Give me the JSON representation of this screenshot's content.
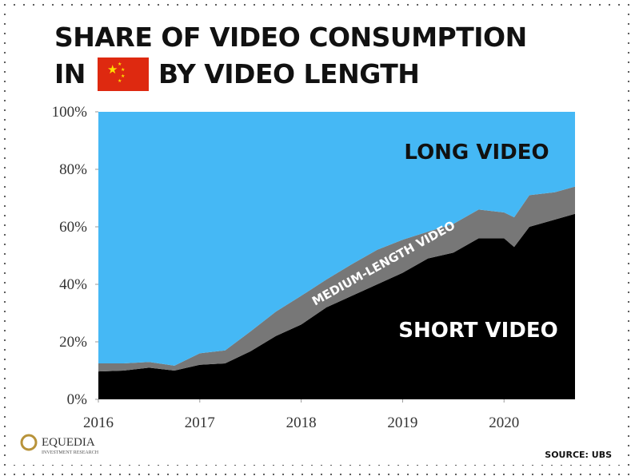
{
  "chart_data": {
    "type": "stacked-area",
    "title_line1": "SHARE OF VIDEO CONSUMPTION",
    "title_line2_start": "IN",
    "title_line2_end": "BY VIDEO LENGTH",
    "source": "SOURCE:  UBS",
    "x": [
      2016.0,
      2016.25,
      2016.5,
      2016.75,
      2017.0,
      2017.25,
      2017.5,
      2017.75,
      2018.0,
      2018.25,
      2018.5,
      2018.75,
      2019.0,
      2019.25,
      2019.5,
      2019.75,
      2020.0,
      2020.1,
      2020.25,
      2020.5,
      2020.7
    ],
    "series": [
      {
        "name": "SHORT VIDEO",
        "color": "#000000",
        "values": [
          9.7,
          10,
          11,
          10,
          12,
          12.5,
          16.7,
          22,
          26,
          32,
          36,
          40,
          44,
          49,
          51,
          56,
          56,
          53,
          60,
          62.5,
          64.5
        ]
      },
      {
        "name": "MEDIUM-LENGTH VIDEO",
        "color": "#777777",
        "values": [
          2.8,
          2.5,
          2,
          1.7,
          4,
          4.5,
          6.9,
          8.5,
          10,
          9.7,
          11,
          12,
          11.5,
          9.3,
          10,
          10,
          9,
          10.3,
          11,
          9.5,
          9.5
        ]
      },
      {
        "name": "LONG VIDEO",
        "color": "#45b8f5",
        "values": [
          87.5,
          87.5,
          87,
          88.3,
          84,
          83,
          76.4,
          69.5,
          64,
          58.3,
          53,
          48,
          44.5,
          41.7,
          39,
          34,
          35,
          36.7,
          29,
          28,
          26
        ]
      }
    ],
    "xlim": [
      2016,
      2020.7
    ],
    "xticks": [
      2016,
      2017,
      2018,
      2019,
      2020
    ],
    "ylim": [
      0,
      100
    ],
    "yticks": [
      {
        "value": 0,
        "label": "0%"
      },
      {
        "value": 20,
        "label": "20%"
      },
      {
        "value": 40,
        "label": "40%"
      },
      {
        "value": 60,
        "label": "60%"
      },
      {
        "value": 80,
        "label": "80%"
      },
      {
        "value": 100,
        "label": "100%"
      }
    ]
  },
  "logo": {
    "name": "EQUEDIA",
    "tagline": "INVESTMENT RESEARCH"
  }
}
